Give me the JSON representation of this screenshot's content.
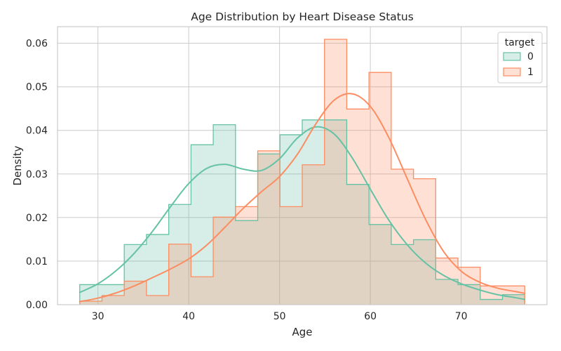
{
  "chart_data": {
    "type": "histogram",
    "title": "Age Distribution by Heart Disease Status",
    "xlabel": "Age",
    "ylabel": "Density",
    "xlim": [
      25.55,
      79.45
    ],
    "ylim": [
      0,
      0.0638
    ],
    "xticks": [
      30,
      40,
      50,
      60,
      70
    ],
    "yticks": [
      0.0,
      0.01,
      0.02,
      0.03,
      0.04,
      0.05,
      0.06
    ],
    "ytick_labels": [
      "0.00",
      "0.01",
      "0.02",
      "0.03",
      "0.04",
      "0.05",
      "0.06"
    ],
    "grid": true,
    "legend": {
      "title": "target",
      "position": "top-right"
    },
    "bin_edges": [
      28,
      30.45,
      32.9,
      35.35,
      37.8,
      40.25,
      42.7,
      45.15,
      47.6,
      50.05,
      52.5,
      54.95,
      57.4,
      59.85,
      62.3,
      64.75,
      67.2,
      69.65,
      72.1,
      74.55,
      77
    ],
    "series": [
      {
        "name": "0",
        "color": "#66c2a5",
        "fill": "rgba(102,194,165,0.27)",
        "densities": [
          0.0046,
          0.0046,
          0.0138,
          0.0161,
          0.023,
          0.0367,
          0.0413,
          0.0193,
          0.0346,
          0.039,
          0.0424,
          0.0424,
          0.0276,
          0.0184,
          0.0138,
          0.0149,
          0.0058,
          0.0046,
          0.0012,
          0.0023
        ],
        "kde": {
          "x": [
            28,
            30,
            32,
            34,
            36,
            38,
            40,
            42,
            44,
            46,
            48,
            50,
            52,
            54,
            56,
            58,
            60,
            62,
            64,
            66,
            68,
            70,
            72,
            74,
            76,
            77
          ],
          "y": [
            0.0028,
            0.0048,
            0.0078,
            0.0118,
            0.0168,
            0.0225,
            0.0278,
            0.0313,
            0.0322,
            0.0311,
            0.0308,
            0.0335,
            0.0383,
            0.0408,
            0.0392,
            0.0337,
            0.0265,
            0.0195,
            0.0139,
            0.0097,
            0.0068,
            0.0048,
            0.0034,
            0.0023,
            0.0016,
            0.0012
          ]
        }
      },
      {
        "name": "1",
        "color": "#fc8d62",
        "fill": "rgba(252,141,98,0.27)",
        "densities": [
          0.0008,
          0.0021,
          0.0054,
          0.0021,
          0.0139,
          0.0064,
          0.0201,
          0.0225,
          0.0353,
          0.0225,
          0.0321,
          0.0609,
          0.0449,
          0.0533,
          0.0311,
          0.0289,
          0.0107,
          0.0086,
          0.0043,
          0.0043
        ],
        "kde": {
          "x": [
            28,
            30,
            32,
            34,
            36,
            38,
            40,
            42,
            44,
            46,
            48,
            50,
            52,
            54,
            56,
            58,
            60,
            62,
            64,
            66,
            68,
            70,
            72,
            74,
            76,
            77
          ],
          "y": [
            0.0007,
            0.0015,
            0.0027,
            0.0043,
            0.0062,
            0.0082,
            0.0105,
            0.0137,
            0.0178,
            0.0221,
            0.0259,
            0.0294,
            0.0346,
            0.0415,
            0.0469,
            0.0484,
            0.0455,
            0.0385,
            0.0292,
            0.0199,
            0.0124,
            0.0077,
            0.0052,
            0.0038,
            0.003,
            0.0026
          ]
        }
      }
    ]
  }
}
